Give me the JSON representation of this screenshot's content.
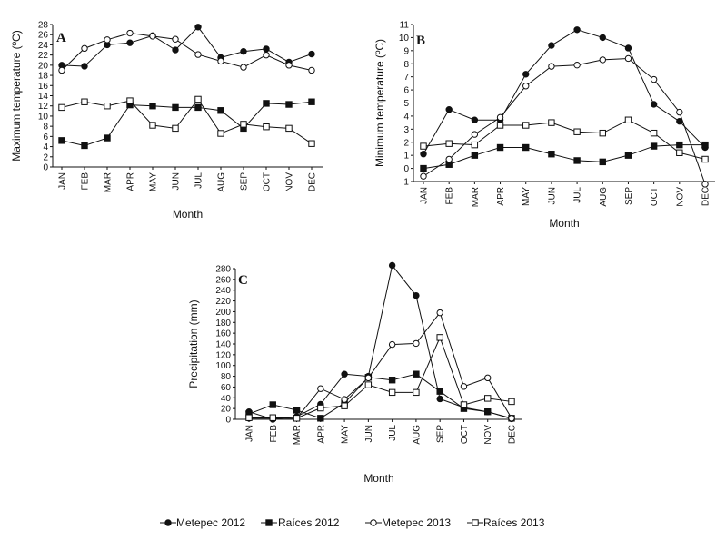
{
  "months": [
    "JAN",
    "FEB",
    "MAR",
    "APR",
    "MAY",
    "JUN",
    "JUL",
    "AUG",
    "SEP",
    "OCT",
    "NOV",
    "DEC"
  ],
  "legend": [
    {
      "name": "Metepec 2012",
      "marker": "circle",
      "filled": true
    },
    {
      "name": "Raíces 2012",
      "marker": "square",
      "filled": true
    },
    {
      "name": "Metepec 2013",
      "marker": "circle",
      "filled": false
    },
    {
      "name": "Raíces 2013",
      "marker": "square",
      "filled": false
    }
  ],
  "colors": {
    "ink": "#111111",
    "background": "#ffffff"
  },
  "chart_data": [
    {
      "panel": "A",
      "type": "line",
      "xlabel": "Month",
      "ylabel": "Maximum temperature (ºC)",
      "ylim": [
        0,
        28
      ],
      "yticks": [
        0,
        2,
        4,
        6,
        8,
        10,
        12,
        14,
        16,
        18,
        20,
        22,
        24,
        26,
        28
      ],
      "series": [
        {
          "name": "Metepec 2012",
          "values": [
            20.0,
            19.8,
            24.0,
            24.4,
            25.8,
            23.0,
            27.5,
            21.5,
            22.7,
            23.2,
            20.6,
            22.2
          ]
        },
        {
          "name": "Raíces 2012",
          "values": [
            5.2,
            4.2,
            5.7,
            12.2,
            12.0,
            11.7,
            11.7,
            11.1,
            7.6,
            12.5,
            12.3,
            12.8
          ]
        },
        {
          "name": "Metepec 2013",
          "values": [
            19.0,
            23.3,
            25.0,
            26.3,
            25.7,
            25.1,
            22.1,
            20.8,
            19.6,
            22.0,
            20.0,
            19.0
          ]
        },
        {
          "name": "Raíces 2013",
          "values": [
            11.7,
            12.8,
            12.0,
            13.0,
            8.2,
            7.6,
            13.3,
            6.6,
            8.4,
            7.9,
            7.6,
            4.6
          ]
        }
      ]
    },
    {
      "panel": "B",
      "type": "line",
      "xlabel": "Month",
      "ylabel": "Minimum temperature (ºC)",
      "ylim": [
        -1,
        11
      ],
      "yticks": [
        -1,
        0,
        1,
        2,
        3,
        4,
        5,
        6,
        7,
        8,
        9,
        10,
        11
      ],
      "series": [
        {
          "name": "Metepec 2012",
          "values": [
            1.1,
            4.5,
            3.7,
            3.7,
            7.2,
            9.4,
            10.6,
            10.0,
            9.2,
            4.9,
            3.6,
            1.6
          ]
        },
        {
          "name": "Raíces 2012",
          "values": [
            0.0,
            0.3,
            1.0,
            1.6,
            1.6,
            1.1,
            0.6,
            0.5,
            1.0,
            1.7,
            1.8,
            1.8
          ]
        },
        {
          "name": "Metepec 2013",
          "values": [
            -0.6,
            0.7,
            2.6,
            3.9,
            6.3,
            7.8,
            7.9,
            8.3,
            8.4,
            6.8,
            4.3,
            -1.2
          ]
        },
        {
          "name": "Raíces 2013",
          "values": [
            1.7,
            1.9,
            1.8,
            3.3,
            3.3,
            3.5,
            2.8,
            2.7,
            3.7,
            2.7,
            1.2,
            0.7
          ]
        }
      ]
    },
    {
      "panel": "C",
      "type": "line",
      "xlabel": "Month",
      "ylabel": "Precipitation (mm)",
      "ylim": [
        0,
        280
      ],
      "yticks": [
        0,
        20,
        40,
        60,
        80,
        100,
        120,
        140,
        160,
        180,
        200,
        220,
        240,
        260,
        280
      ],
      "series": [
        {
          "name": "Metepec 2012",
          "values": [
            14,
            0,
            5,
            28,
            84,
            80,
            286,
            230,
            38,
            22,
            14,
            1
          ]
        },
        {
          "name": "Raíces 2012",
          "values": [
            10,
            27,
            17,
            2,
            30,
            78,
            73,
            84,
            52,
            20,
            14,
            2
          ]
        },
        {
          "name": "Metepec 2013",
          "values": [
            2,
            2,
            2,
            57,
            37,
            77,
            139,
            141,
            198,
            61,
            77,
            2
          ]
        },
        {
          "name": "Raíces 2013",
          "values": [
            3,
            3,
            2,
            21,
            25,
            64,
            50,
            50,
            152,
            27,
            39,
            33
          ]
        }
      ]
    }
  ]
}
